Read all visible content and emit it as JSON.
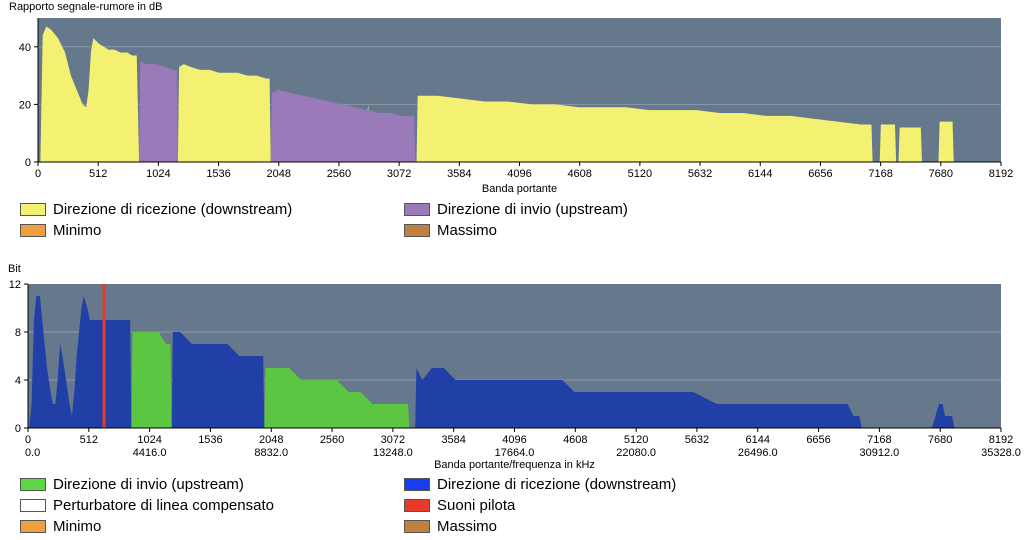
{
  "chart_data": [
    {
      "type": "area",
      "title": "Rapporto segnale-rumore in dB",
      "xlabel": "Banda portante",
      "xlim": [
        0,
        8192
      ],
      "ylim": [
        0,
        50
      ],
      "xticks": [
        "0",
        "512",
        "1024",
        "1536",
        "2048",
        "2560",
        "3072",
        "3584",
        "4096",
        "4608",
        "5120",
        "5632",
        "6144",
        "6656",
        "7168",
        "7680",
        "8192"
      ],
      "yticks": [
        "0",
        "20",
        "40"
      ],
      "grid": true,
      "background": "#65788c",
      "series": [
        {
          "name": "Direzione di ricezione (downstream)",
          "color": "#f4f072",
          "points": [
            [
              20,
              0
            ],
            [
              40,
              44
            ],
            [
              70,
              47
            ],
            [
              110,
              46
            ],
            [
              170,
              43
            ],
            [
              230,
              38
            ],
            [
              280,
              30
            ],
            [
              330,
              25
            ],
            [
              380,
              20
            ],
            [
              410,
              19
            ],
            [
              430,
              25
            ],
            [
              450,
              38
            ],
            [
              470,
              43
            ],
            [
              520,
              41
            ],
            [
              560,
              40
            ],
            [
              600,
              39
            ],
            [
              650,
              39
            ],
            [
              700,
              38
            ],
            [
              760,
              38
            ],
            [
              800,
              37
            ],
            [
              840,
              37
            ],
            [
              860,
              0
            ],
            [
              1190,
              0
            ],
            [
              1200,
              33
            ],
            [
              1240,
              34
            ],
            [
              1300,
              33
            ],
            [
              1380,
              32
            ],
            [
              1460,
              32
            ],
            [
              1540,
              31
            ],
            [
              1620,
              31
            ],
            [
              1700,
              31
            ],
            [
              1780,
              30
            ],
            [
              1860,
              30
            ],
            [
              1940,
              29
            ],
            [
              1970,
              29
            ],
            [
              1980,
              0
            ],
            [
              2790,
              0
            ],
            [
              2800,
              17
            ],
            [
              2810,
              20
            ],
            [
              2820,
              0
            ],
            [
              3220,
              0
            ],
            [
              3230,
              23
            ],
            [
              3400,
              23
            ],
            [
              3600,
              22
            ],
            [
              3800,
              21
            ],
            [
              4000,
              21
            ],
            [
              4200,
              20
            ],
            [
              4400,
              20
            ],
            [
              4600,
              19
            ],
            [
              4800,
              19
            ],
            [
              5000,
              19
            ],
            [
              5200,
              18
            ],
            [
              5400,
              18
            ],
            [
              5600,
              18
            ],
            [
              5800,
              17
            ],
            [
              6000,
              17
            ],
            [
              6200,
              16
            ],
            [
              6400,
              16
            ],
            [
              6600,
              15
            ],
            [
              6800,
              14
            ],
            [
              7000,
              13
            ],
            [
              7090,
              13
            ],
            [
              7100,
              0
            ],
            [
              7160,
              0
            ],
            [
              7170,
              13
            ],
            [
              7290,
              13
            ],
            [
              7300,
              0
            ],
            [
              7320,
              0
            ],
            [
              7330,
              12
            ],
            [
              7510,
              12
            ],
            [
              7520,
              0
            ],
            [
              7660,
              0
            ],
            [
              7670,
              14
            ],
            [
              7780,
              14
            ],
            [
              7790,
              0
            ]
          ]
        },
        {
          "name": "Direzione di invio (upstream)",
          "color": "#9a7ab8",
          "points": [
            [
              860,
              0
            ],
            [
              870,
              35
            ],
            [
              920,
              34
            ],
            [
              1000,
              34
            ],
            [
              1080,
              33
            ],
            [
              1140,
              32
            ],
            [
              1180,
              32
            ],
            [
              1190,
              0
            ],
            [
              1980,
              0
            ],
            [
              1990,
              24
            ],
            [
              2040,
              25
            ],
            [
              2150,
              24
            ],
            [
              2260,
              23
            ],
            [
              2370,
              22
            ],
            [
              2480,
              21
            ],
            [
              2590,
              20
            ],
            [
              2700,
              19
            ],
            [
              2790,
              18
            ],
            [
              2820,
              18
            ],
            [
              2900,
              17
            ],
            [
              3000,
              17
            ],
            [
              3100,
              16
            ],
            [
              3200,
              16
            ],
            [
              3210,
              0
            ]
          ]
        }
      ]
    },
    {
      "type": "area",
      "title": "Bit",
      "xlabel": "Banda portante/frequenza in kHz",
      "xlim": [
        0,
        8192
      ],
      "ylim": [
        0,
        12
      ],
      "xticks": [
        "0",
        "512",
        "1024",
        "1536",
        "2048",
        "2560",
        "3072",
        "3584",
        "4096",
        "4608",
        "5120",
        "5632",
        "6144",
        "6656",
        "7168",
        "7680",
        "8192"
      ],
      "xticks2": [
        "0.0",
        "4416.0",
        "8832.0",
        "13248.0",
        "17664.0",
        "22080.0",
        "26496.0",
        "30912.0",
        "35328.0"
      ],
      "yticks": [
        "0",
        "4",
        "8",
        "12"
      ],
      "grid": true,
      "background": "#65788c",
      "pilot_tone": 640,
      "series": [
        {
          "name": "Direzione di ricezione (downstream)",
          "color": "#2040a8",
          "points": [
            [
              10,
              0
            ],
            [
              30,
              2
            ],
            [
              50,
              9
            ],
            [
              70,
              11
            ],
            [
              100,
              11
            ],
            [
              130,
              8
            ],
            [
              160,
              5
            ],
            [
              190,
              3
            ],
            [
              210,
              2
            ],
            [
              230,
              2
            ],
            [
              250,
              4
            ],
            [
              270,
              7
            ],
            [
              290,
              6
            ],
            [
              320,
              4
            ],
            [
              350,
              2
            ],
            [
              370,
              1
            ],
            [
              390,
              3
            ],
            [
              410,
              6
            ],
            [
              430,
              8
            ],
            [
              450,
              10
            ],
            [
              470,
              11
            ],
            [
              500,
              10
            ],
            [
              520,
              9
            ],
            [
              560,
              9
            ],
            [
              620,
              9
            ],
            [
              700,
              9
            ],
            [
              800,
              9
            ],
            [
              860,
              9
            ],
            [
              870,
              0
            ],
            [
              1210,
              0
            ],
            [
              1220,
              8
            ],
            [
              1280,
              8
            ],
            [
              1380,
              7
            ],
            [
              1480,
              7
            ],
            [
              1580,
              7
            ],
            [
              1680,
              7
            ],
            [
              1780,
              6
            ],
            [
              1880,
              6
            ],
            [
              1980,
              6
            ],
            [
              1990,
              0
            ],
            [
              3260,
              0
            ],
            [
              3270,
              5
            ],
            [
              3320,
              4
            ],
            [
              3400,
              5
            ],
            [
              3500,
              5
            ],
            [
              3600,
              4
            ],
            [
              3700,
              4
            ],
            [
              3900,
              4
            ],
            [
              4200,
              4
            ],
            [
              4500,
              4
            ],
            [
              4600,
              3
            ],
            [
              4700,
              3
            ],
            [
              5000,
              3
            ],
            [
              5300,
              3
            ],
            [
              5600,
              3
            ],
            [
              5800,
              2
            ],
            [
              6200,
              2
            ],
            [
              6600,
              2
            ],
            [
              6900,
              2
            ],
            [
              6950,
              1
            ],
            [
              7000,
              1
            ],
            [
              7020,
              0
            ],
            [
              7610,
              0
            ],
            [
              7640,
              1
            ],
            [
              7670,
              2
            ],
            [
              7700,
              2
            ],
            [
              7720,
              1
            ],
            [
              7780,
              1
            ],
            [
              7800,
              0
            ]
          ]
        },
        {
          "name": "Direzione di invio (upstream)",
          "color": "#5cc642",
          "points": [
            [
              870,
              0
            ],
            [
              880,
              8
            ],
            [
              920,
              8
            ],
            [
              1000,
              8
            ],
            [
              1100,
              8
            ],
            [
              1160,
              7
            ],
            [
              1200,
              7
            ],
            [
              1210,
              0
            ],
            [
              1990,
              0
            ],
            [
              2000,
              5
            ],
            [
              2060,
              5
            ],
            [
              2200,
              5
            ],
            [
              2300,
              4
            ],
            [
              2400,
              4
            ],
            [
              2500,
              4
            ],
            [
              2600,
              4
            ],
            [
              2700,
              3
            ],
            [
              2800,
              3
            ],
            [
              2900,
              2
            ],
            [
              3000,
              2
            ],
            [
              3150,
              2
            ],
            [
              3200,
              2
            ],
            [
              3210,
              0
            ]
          ]
        }
      ]
    }
  ],
  "legend_top": [
    {
      "label": "Direzione di ricezione (downstream)",
      "color": "#f4f072"
    },
    {
      "label": "Direzione di invio (upstream)",
      "color": "#9a7ab8"
    },
    {
      "label": "Minimo",
      "color": "#f0a040"
    },
    {
      "label": "Massimo",
      "color": "#c08040"
    }
  ],
  "legend_bottom": [
    {
      "label": "Direzione di invio (upstream)",
      "color": "#5cd642"
    },
    {
      "label": "Direzione di ricezione (downstream)",
      "color": "#1a3cf0"
    },
    {
      "label": "Perturbatore di linea compensato",
      "color": "#ffffff"
    },
    {
      "label": "Suoni pilota",
      "color": "#e83a28"
    },
    {
      "label": "Minimo",
      "color": "#f0a040"
    },
    {
      "label": "Massimo",
      "color": "#c08040"
    }
  ]
}
